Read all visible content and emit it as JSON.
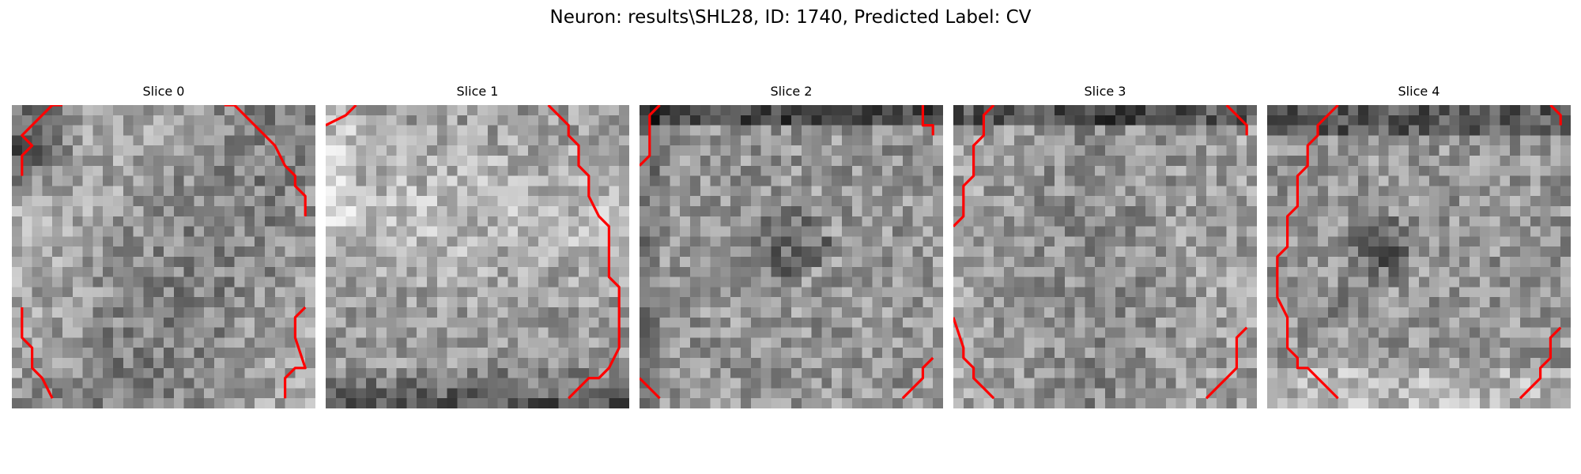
{
  "figure": {
    "title": "Neuron: results\\SHL28, ID: 1740, Predicted Label: CV"
  },
  "panels": [
    {
      "label": "Slice 0"
    },
    {
      "label": "Slice 1"
    },
    {
      "label": "Slice 2"
    },
    {
      "label": "Slice 3"
    },
    {
      "label": "Slice 4"
    }
  ],
  "image": {
    "colormap": "gray",
    "contour_color": "#ff0000"
  }
}
